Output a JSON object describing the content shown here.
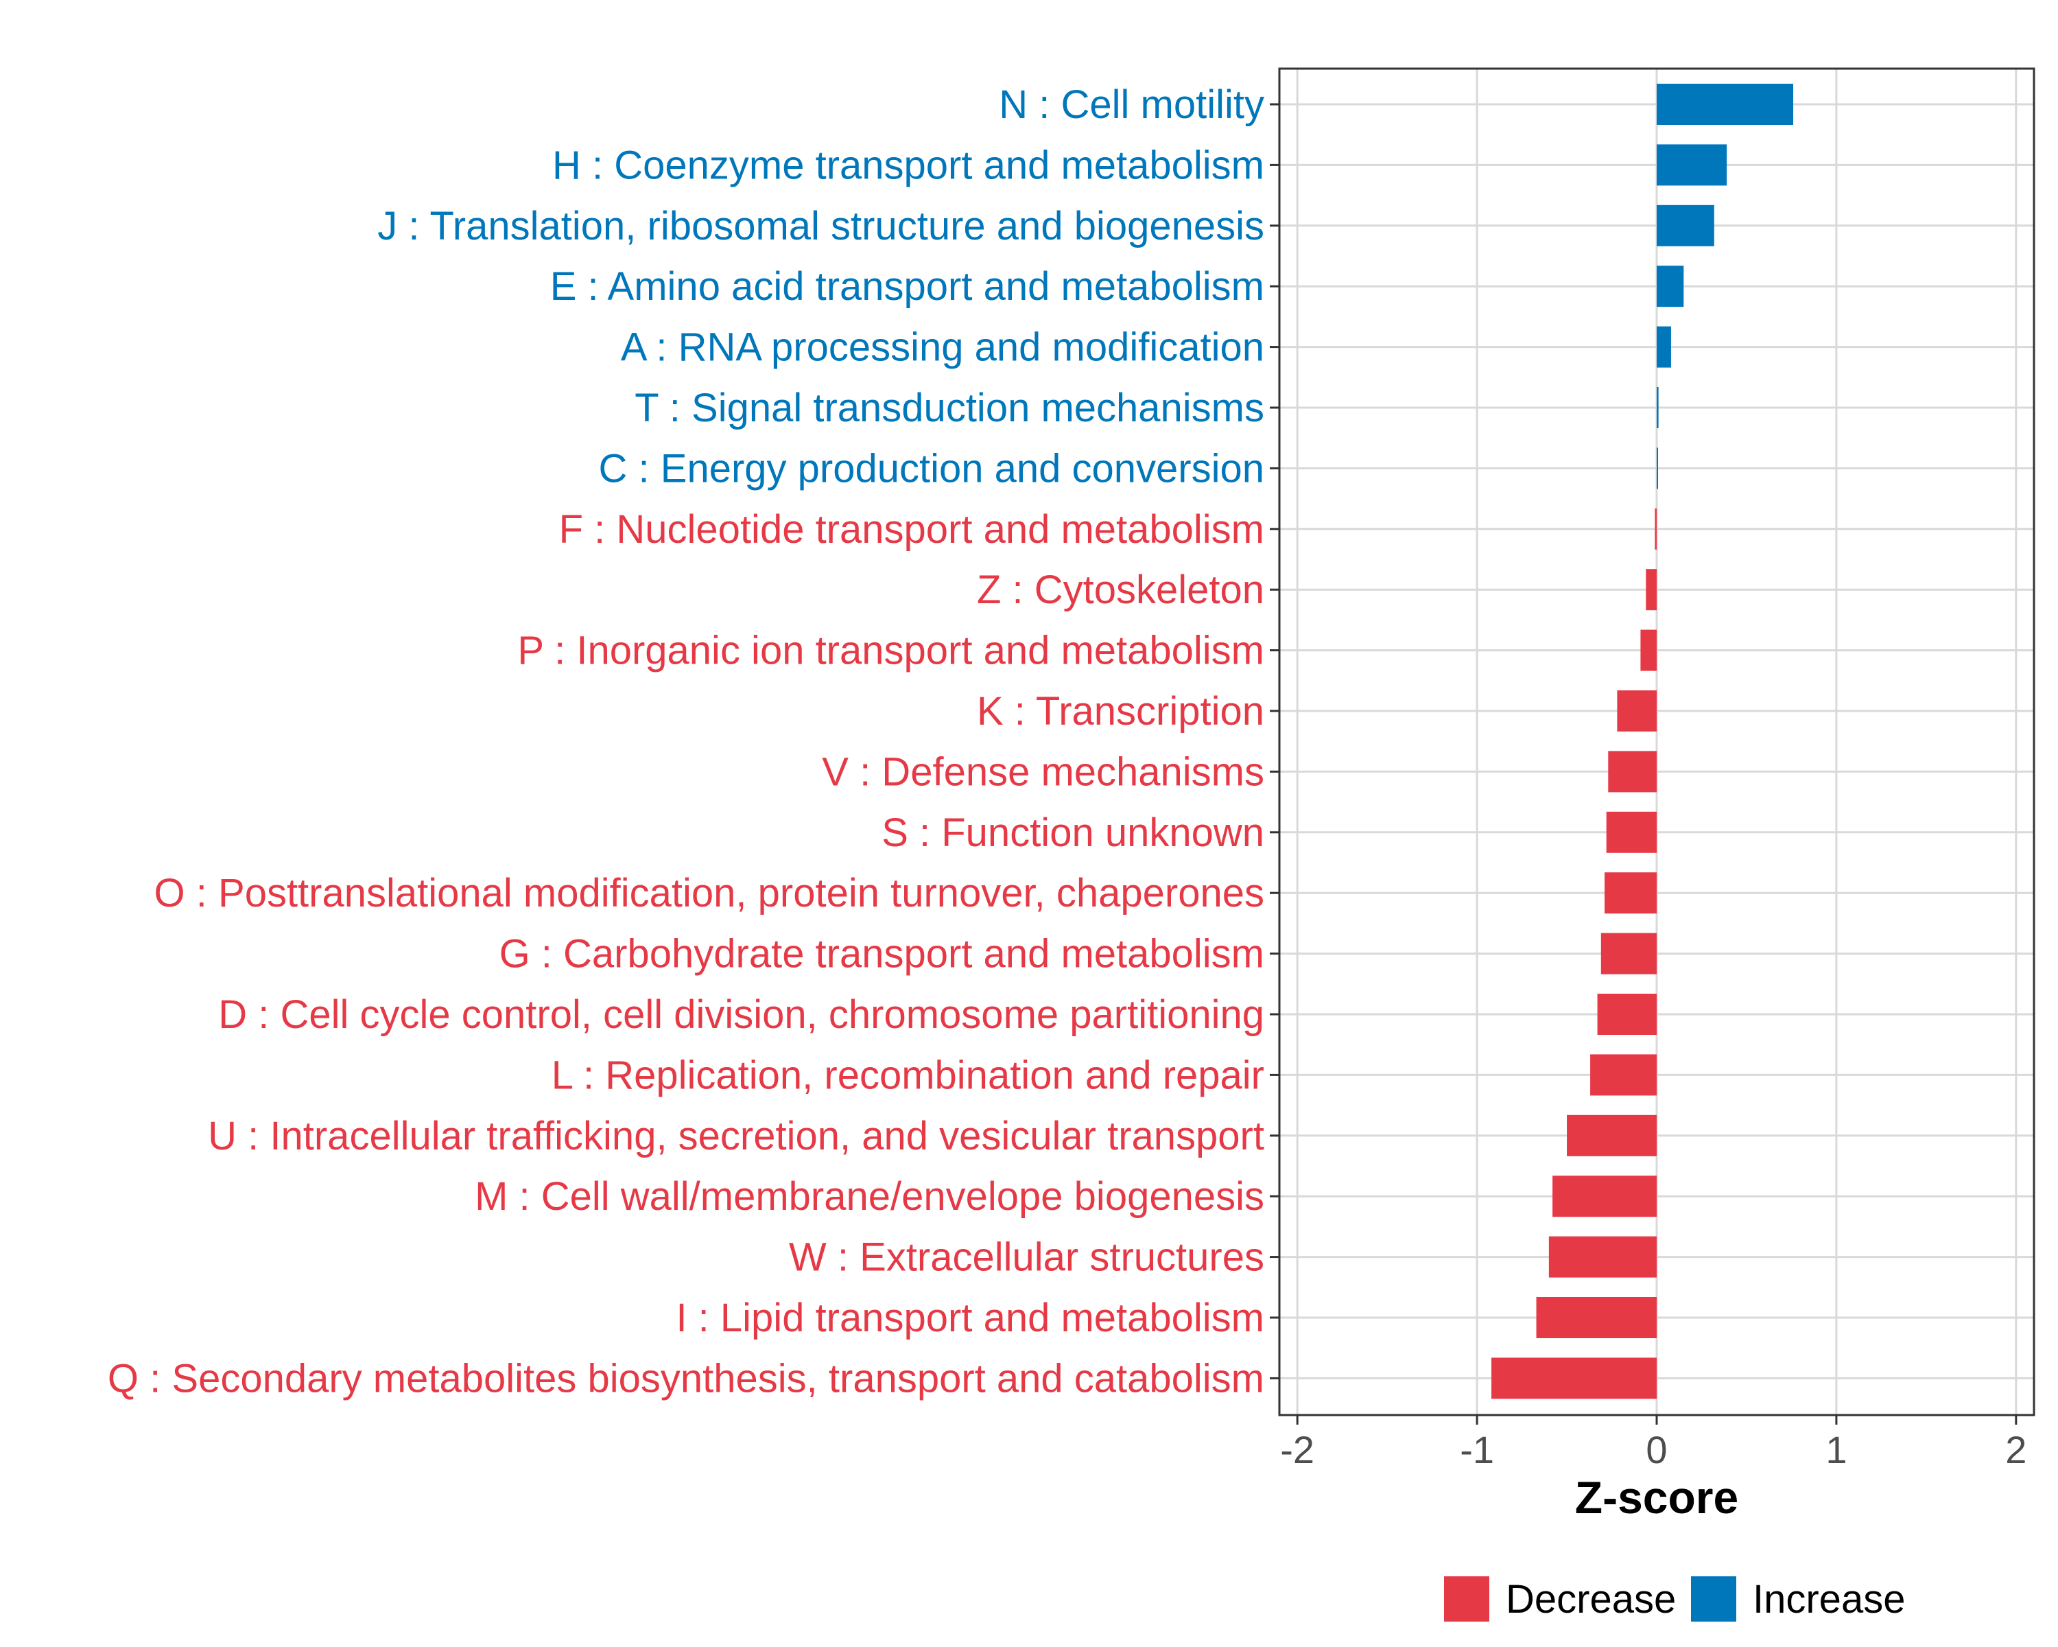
{
  "chart_data": {
    "type": "bar",
    "orientation": "horizontal",
    "title": "",
    "xlabel": "Z-score",
    "ylabel": "",
    "xlim": [
      -2.1,
      2.1
    ],
    "xticks": [
      -2,
      -1,
      0,
      1,
      2
    ],
    "xtick_labels": [
      "-2",
      "-1",
      "0",
      "1",
      "2"
    ],
    "grid": true,
    "legend_position": "bottom",
    "categories": [
      "N : Cell motility",
      "H : Coenzyme transport and metabolism",
      "J : Translation, ribosomal structure and biogenesis",
      "E : Amino acid transport and metabolism",
      "A : RNA processing and modification",
      "T : Signal transduction mechanisms",
      "C : Energy production and conversion",
      "F : Nucleotide transport and metabolism",
      "Z : Cytoskeleton",
      "P : Inorganic ion transport and metabolism",
      "K : Transcription",
      "V : Defense mechanisms",
      "S : Function unknown",
      "O : Posttranslational modification, protein turnover, chaperones",
      "G : Carbohydrate transport and metabolism",
      "D : Cell cycle control, cell division, chromosome partitioning",
      "L : Replication, recombination and repair",
      "U : Intracellular trafficking, secretion, and vesicular transport",
      "M : Cell wall/membrane/envelope biogenesis",
      "W : Extracellular structures",
      "I : Lipid transport and metabolism",
      "Q : Secondary metabolites biosynthesis, transport and catabolism"
    ],
    "values": [
      0.76,
      0.39,
      0.32,
      0.15,
      0.08,
      0.01,
      0.005,
      -0.01,
      -0.06,
      -0.09,
      -0.22,
      -0.27,
      -0.28,
      -0.29,
      -0.31,
      -0.33,
      -0.37,
      -0.5,
      -0.58,
      -0.6,
      -0.67,
      -0.92
    ],
    "legend": [
      {
        "name": "Decrease",
        "color": "#e63946"
      },
      {
        "name": "Increase",
        "color": "#0077bb"
      }
    ]
  },
  "colors": {
    "decrease": "#e63946",
    "increase": "#0077bb",
    "grid": "#d9d9d9",
    "panel_border": "#333333"
  }
}
